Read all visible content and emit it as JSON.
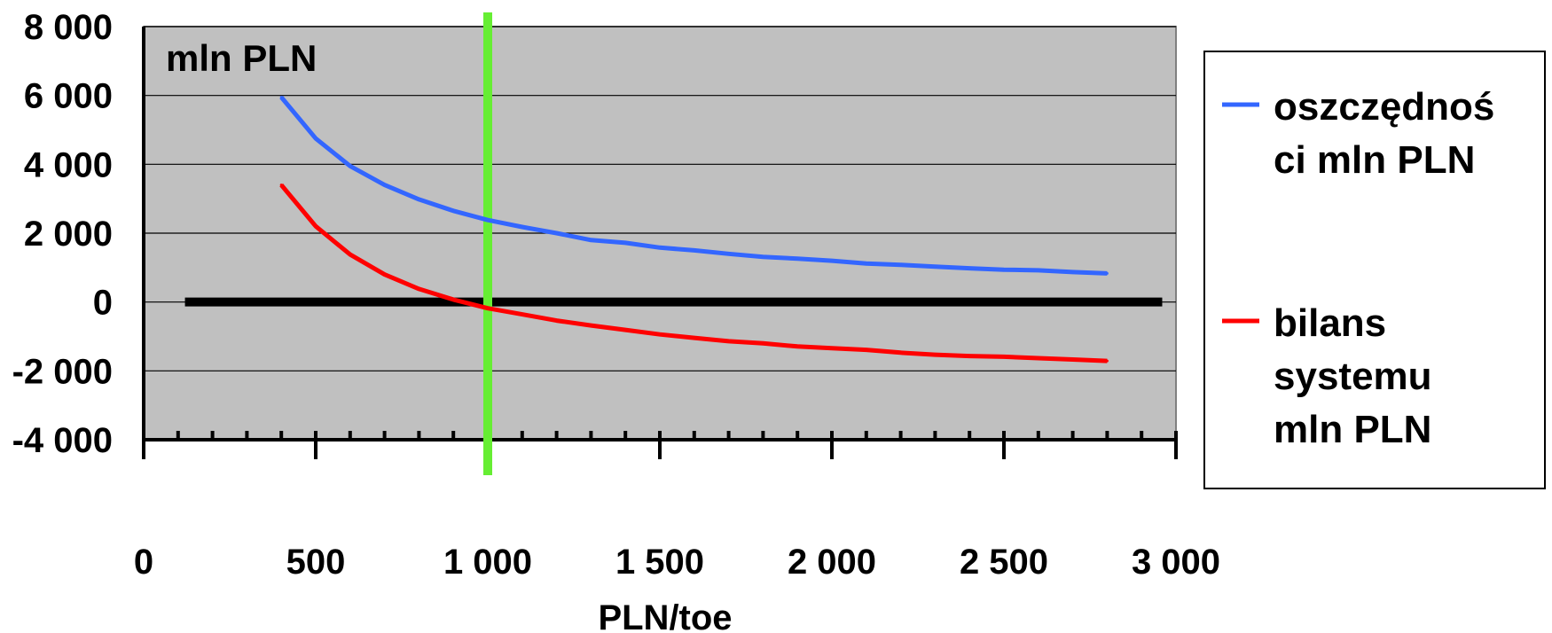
{
  "chart_data": {
    "type": "line",
    "unit_label": "mln PLN",
    "xlabel": "PLN/toe",
    "ylabel": "",
    "xlim": [
      0,
      3000
    ],
    "ylim": [
      -4000,
      8000
    ],
    "x_ticks": [
      0,
      500,
      1000,
      1500,
      2000,
      2500,
      3000
    ],
    "x_tick_labels": [
      "0",
      "500",
      "1 000",
      "1 500",
      "2 000",
      "2 500",
      "3 000"
    ],
    "y_ticks": [
      8000,
      6000,
      4000,
      2000,
      0,
      -2000,
      -4000
    ],
    "y_tick_labels": [
      "8 000",
      "6 000",
      "4 000",
      "2 000",
      "0",
      "-2 000",
      "-4 000"
    ],
    "grid": true,
    "legend_position": "right",
    "reference_lines": {
      "horizontal_zero": {
        "y": 0,
        "x_from": 120,
        "x_to": 2960,
        "color": "#000000"
      },
      "vertical_marker": {
        "x": 1000,
        "color": "#66ee33"
      }
    },
    "x": [
      400,
      500,
      600,
      700,
      800,
      900,
      1000,
      1100,
      1200,
      1300,
      1400,
      1500,
      1600,
      1700,
      1800,
      1900,
      2000,
      2100,
      2200,
      2300,
      2400,
      2500,
      2600,
      2700,
      2800
    ],
    "series": [
      {
        "name": "oszczędności mln PLN",
        "legend_lines": [
          "oszczędnoś",
          "ci mln PLN"
        ],
        "color": "#3366ff",
        "values": [
          5950,
          4750,
          3950,
          3400,
          2980,
          2650,
          2380,
          2180,
          2000,
          1800,
          1720,
          1580,
          1500,
          1400,
          1310,
          1260,
          1200,
          1120,
          1080,
          1030,
          980,
          940,
          920,
          870,
          830
        ]
      },
      {
        "name": "bilans systemu mln PLN",
        "legend_lines": [
          "bilans",
          "systemu",
          "mln PLN"
        ],
        "color": "#ff0000",
        "values": [
          3400,
          2200,
          1380,
          800,
          380,
          70,
          -180,
          -360,
          -540,
          -680,
          -810,
          -940,
          -1040,
          -1140,
          -1200,
          -1290,
          -1340,
          -1390,
          -1470,
          -1530,
          -1570,
          -1590,
          -1630,
          -1670,
          -1710
        ]
      }
    ],
    "colors": {
      "plot_background": "#c0c0c0",
      "grid": "#000000",
      "axis": "#000000"
    }
  }
}
